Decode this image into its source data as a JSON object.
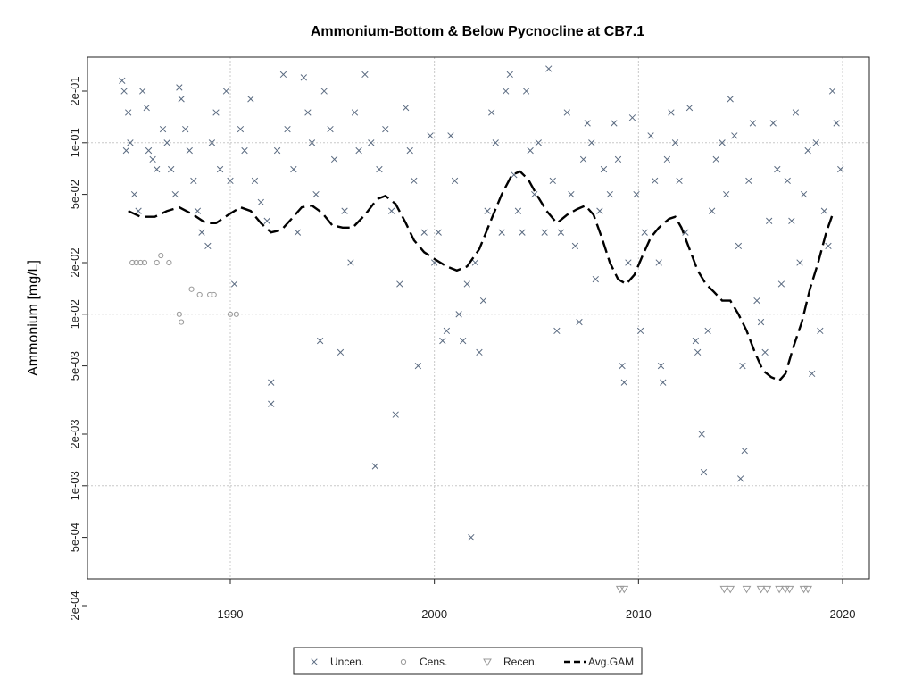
{
  "chart_data": {
    "type": "scatter",
    "title": "Ammonium-Bottom & Below Pycnocline at CB7.1",
    "xlabel": "",
    "ylabel": "Ammonium [mg/L]",
    "y_scale": "log",
    "xlim": [
      1983.3,
      2021.2
    ],
    "ylim": [
      0.00018,
      0.35
    ],
    "x_ticks": [
      "1990",
      "2000",
      "2010",
      "2020"
    ],
    "y_ticks": [
      "2e-01",
      "1e-01",
      "5e-02",
      "2e-02",
      "1e-02",
      "5e-03",
      "2e-03",
      "1e-03",
      "5e-04",
      "2e-04"
    ],
    "grid": true,
    "legend_position": "bottom",
    "colors": {
      "points": "#5a6a80",
      "censored": "#999999",
      "gam": "#000000",
      "grid": "#c8c8c8"
    },
    "series": [
      {
        "name": "Uncen.",
        "marker": "x",
        "points": [
          [
            1984.7,
            0.23
          ],
          [
            1984.8,
            0.2
          ],
          [
            1985.0,
            0.15
          ],
          [
            1985.1,
            0.1
          ],
          [
            1984.9,
            0.09
          ],
          [
            1985.3,
            0.05
          ],
          [
            1985.5,
            0.04
          ],
          [
            1985.7,
            0.2
          ],
          [
            1985.9,
            0.16
          ],
          [
            1986.0,
            0.09
          ],
          [
            1986.2,
            0.08
          ],
          [
            1986.4,
            0.07
          ],
          [
            1986.7,
            0.12
          ],
          [
            1986.9,
            0.1
          ],
          [
            1987.1,
            0.07
          ],
          [
            1987.3,
            0.05
          ],
          [
            1987.5,
            0.21
          ],
          [
            1987.6,
            0.18
          ],
          [
            1987.8,
            0.12
          ],
          [
            1988.0,
            0.09
          ],
          [
            1988.2,
            0.06
          ],
          [
            1988.4,
            0.04
          ],
          [
            1988.6,
            0.03
          ],
          [
            1988.9,
            0.025
          ],
          [
            1989.1,
            0.1
          ],
          [
            1989.3,
            0.15
          ],
          [
            1989.5,
            0.07
          ],
          [
            1989.8,
            0.2
          ],
          [
            1990.0,
            0.06
          ],
          [
            1990.2,
            0.015
          ],
          [
            1990.5,
            0.12
          ],
          [
            1990.7,
            0.09
          ],
          [
            1991.0,
            0.18
          ],
          [
            1991.2,
            0.06
          ],
          [
            1991.5,
            0.045
          ],
          [
            1991.8,
            0.035
          ],
          [
            1992.0,
            0.004
          ],
          [
            1992.0,
            0.003
          ],
          [
            1992.3,
            0.09
          ],
          [
            1992.6,
            0.25
          ],
          [
            1992.8,
            0.12
          ],
          [
            1993.1,
            0.07
          ],
          [
            1993.3,
            0.03
          ],
          [
            1993.6,
            0.24
          ],
          [
            1993.8,
            0.15
          ],
          [
            1994.0,
            0.1
          ],
          [
            1994.2,
            0.05
          ],
          [
            1994.4,
            0.007
          ],
          [
            1994.6,
            0.2
          ],
          [
            1994.9,
            0.12
          ],
          [
            1995.1,
            0.08
          ],
          [
            1995.4,
            0.006
          ],
          [
            1995.6,
            0.04
          ],
          [
            1995.9,
            0.02
          ],
          [
            1996.1,
            0.15
          ],
          [
            1996.3,
            0.09
          ],
          [
            1996.6,
            0.25
          ],
          [
            1996.9,
            0.1
          ],
          [
            1997.1,
            0.0013
          ],
          [
            1997.3,
            0.07
          ],
          [
            1997.6,
            0.12
          ],
          [
            1997.9,
            0.04
          ],
          [
            1998.1,
            0.0026
          ],
          [
            1998.3,
            0.015
          ],
          [
            1998.6,
            0.16
          ],
          [
            1998.8,
            0.09
          ],
          [
            1999.0,
            0.06
          ],
          [
            1999.2,
            0.005
          ],
          [
            1999.5,
            0.03
          ],
          [
            1999.8,
            0.11
          ],
          [
            2000.0,
            0.02
          ],
          [
            2000.2,
            0.03
          ],
          [
            2000.4,
            0.007
          ],
          [
            2000.6,
            0.008
          ],
          [
            2000.8,
            0.11
          ],
          [
            2001.0,
            0.06
          ],
          [
            2001.2,
            0.01
          ],
          [
            2001.4,
            0.007
          ],
          [
            2001.6,
            0.015
          ],
          [
            2001.8,
            0.0005
          ],
          [
            2002.0,
            0.02
          ],
          [
            2002.2,
            0.006
          ],
          [
            2002.4,
            0.012
          ],
          [
            2002.6,
            0.04
          ],
          [
            2002.8,
            0.15
          ],
          [
            2003.0,
            0.1
          ],
          [
            2003.3,
            0.03
          ],
          [
            2003.5,
            0.2
          ],
          [
            2003.7,
            0.25
          ],
          [
            2003.9,
            0.065
          ],
          [
            2004.1,
            0.04
          ],
          [
            2004.3,
            0.03
          ],
          [
            2004.5,
            0.2
          ],
          [
            2004.7,
            0.09
          ],
          [
            2004.9,
            0.05
          ],
          [
            2005.1,
            0.1
          ],
          [
            2005.4,
            0.03
          ],
          [
            2005.6,
            0.27
          ],
          [
            2005.8,
            0.06
          ],
          [
            2006.0,
            0.008
          ],
          [
            2006.2,
            0.03
          ],
          [
            2006.5,
            0.15
          ],
          [
            2006.7,
            0.05
          ],
          [
            2006.9,
            0.025
          ],
          [
            2007.1,
            0.009
          ],
          [
            2007.3,
            0.08
          ],
          [
            2007.5,
            0.13
          ],
          [
            2007.7,
            0.1
          ],
          [
            2007.9,
            0.016
          ],
          [
            2008.1,
            0.04
          ],
          [
            2008.3,
            0.07
          ],
          [
            2008.6,
            0.05
          ],
          [
            2008.8,
            0.13
          ],
          [
            2009.0,
            0.08
          ],
          [
            2009.2,
            0.005
          ],
          [
            2009.3,
            0.004
          ],
          [
            2009.5,
            0.02
          ],
          [
            2009.7,
            0.14
          ],
          [
            2009.9,
            0.05
          ],
          [
            2010.1,
            0.008
          ],
          [
            2010.3,
            0.03
          ],
          [
            2010.6,
            0.11
          ],
          [
            2010.8,
            0.06
          ],
          [
            2011.0,
            0.02
          ],
          [
            2011.1,
            0.005
          ],
          [
            2011.2,
            0.004
          ],
          [
            2011.4,
            0.08
          ],
          [
            2011.6,
            0.15
          ],
          [
            2011.8,
            0.1
          ],
          [
            2012.0,
            0.06
          ],
          [
            2012.3,
            0.03
          ],
          [
            2012.5,
            0.16
          ],
          [
            2012.8,
            0.007
          ],
          [
            2012.9,
            0.006
          ],
          [
            2013.1,
            0.002
          ],
          [
            2013.2,
            0.0012
          ],
          [
            2013.4,
            0.008
          ],
          [
            2013.6,
            0.04
          ],
          [
            2013.8,
            0.08
          ],
          [
            2014.1,
            0.1
          ],
          [
            2014.3,
            0.05
          ],
          [
            2014.5,
            0.18
          ],
          [
            2014.7,
            0.11
          ],
          [
            2014.9,
            0.025
          ],
          [
            2015.1,
            0.005
          ],
          [
            2015.2,
            0.0016
          ],
          [
            2015.4,
            0.06
          ],
          [
            2015.6,
            0.13
          ],
          [
            2015.8,
            0.012
          ],
          [
            2016.0,
            0.009
          ],
          [
            2016.2,
            0.006
          ],
          [
            2016.4,
            0.035
          ],
          [
            2016.6,
            0.13
          ],
          [
            2016.8,
            0.07
          ],
          [
            2017.0,
            0.015
          ],
          [
            2017.3,
            0.06
          ],
          [
            2017.5,
            0.035
          ],
          [
            2017.7,
            0.15
          ],
          [
            2017.9,
            0.02
          ],
          [
            2018.1,
            0.05
          ],
          [
            2018.3,
            0.09
          ],
          [
            2018.5,
            0.0045
          ],
          [
            2018.7,
            0.1
          ],
          [
            2018.9,
            0.008
          ],
          [
            2019.1,
            0.04
          ],
          [
            2019.3,
            0.025
          ],
          [
            2019.5,
            0.2
          ],
          [
            2019.7,
            0.13
          ],
          [
            2019.9,
            0.07
          ],
          [
            2015.0,
            0.0011
          ]
        ]
      },
      {
        "name": "Cens.",
        "marker": "o",
        "points": [
          [
            1985.2,
            0.02
          ],
          [
            1985.4,
            0.02
          ],
          [
            1985.6,
            0.02
          ],
          [
            1985.8,
            0.02
          ],
          [
            1986.4,
            0.02
          ],
          [
            1986.6,
            0.022
          ],
          [
            1987.0,
            0.02
          ],
          [
            1987.5,
            0.01
          ],
          [
            1987.6,
            0.009
          ],
          [
            1988.1,
            0.014
          ],
          [
            1988.5,
            0.013
          ],
          [
            1989.0,
            0.013
          ],
          [
            1989.2,
            0.013
          ],
          [
            1990.0,
            0.01
          ],
          [
            1990.3,
            0.01
          ]
        ]
      },
      {
        "name": "Recen.",
        "marker": "triangle-down",
        "points": [
          [
            2009.1,
            0.00025
          ],
          [
            2009.3,
            0.00025
          ],
          [
            2014.2,
            0.00025
          ],
          [
            2014.5,
            0.00025
          ],
          [
            2015.3,
            0.00025
          ],
          [
            2016.0,
            0.00025
          ],
          [
            2016.3,
            0.00025
          ],
          [
            2016.9,
            0.00025
          ],
          [
            2017.2,
            0.00025
          ],
          [
            2017.4,
            0.00025
          ],
          [
            2018.1,
            0.00025
          ],
          [
            2018.3,
            0.00025
          ]
        ]
      },
      {
        "name": "Avg.GAM",
        "type": "line",
        "points": [
          [
            1985.0,
            0.04
          ],
          [
            1985.6,
            0.037
          ],
          [
            1986.3,
            0.037
          ],
          [
            1986.9,
            0.04
          ],
          [
            1987.5,
            0.042
          ],
          [
            1988.2,
            0.038
          ],
          [
            1988.8,
            0.034
          ],
          [
            1989.3,
            0.034
          ],
          [
            1989.9,
            0.038
          ],
          [
            1990.5,
            0.042
          ],
          [
            1991.0,
            0.04
          ],
          [
            1991.5,
            0.034
          ],
          [
            1992.0,
            0.03
          ],
          [
            1992.5,
            0.031
          ],
          [
            1993.0,
            0.036
          ],
          [
            1993.5,
            0.042
          ],
          [
            1994.0,
            0.043
          ],
          [
            1994.5,
            0.039
          ],
          [
            1995.0,
            0.033
          ],
          [
            1995.5,
            0.032
          ],
          [
            1996.0,
            0.032
          ],
          [
            1996.6,
            0.038
          ],
          [
            1997.2,
            0.047
          ],
          [
            1997.6,
            0.049
          ],
          [
            1998.1,
            0.044
          ],
          [
            1998.6,
            0.034
          ],
          [
            1999.0,
            0.027
          ],
          [
            1999.5,
            0.023
          ],
          [
            2000.0,
            0.021
          ],
          [
            2000.6,
            0.019
          ],
          [
            2001.1,
            0.018
          ],
          [
            2001.6,
            0.019
          ],
          [
            2002.2,
            0.024
          ],
          [
            2002.8,
            0.036
          ],
          [
            2003.3,
            0.05
          ],
          [
            2003.8,
            0.065
          ],
          [
            2004.2,
            0.068
          ],
          [
            2004.6,
            0.061
          ],
          [
            2005.0,
            0.05
          ],
          [
            2005.5,
            0.04
          ],
          [
            2006.0,
            0.034
          ],
          [
            2006.5,
            0.038
          ],
          [
            2007.0,
            0.041
          ],
          [
            2007.4,
            0.043
          ],
          [
            2007.8,
            0.038
          ],
          [
            2008.2,
            0.028
          ],
          [
            2008.6,
            0.02
          ],
          [
            2009.0,
            0.016
          ],
          [
            2009.4,
            0.015
          ],
          [
            2009.8,
            0.017
          ],
          [
            2010.2,
            0.022
          ],
          [
            2010.6,
            0.028
          ],
          [
            2011.0,
            0.032
          ],
          [
            2011.5,
            0.036
          ],
          [
            2011.8,
            0.037
          ],
          [
            2012.1,
            0.032
          ],
          [
            2012.5,
            0.024
          ],
          [
            2012.9,
            0.018
          ],
          [
            2013.3,
            0.015
          ],
          [
            2013.7,
            0.0135
          ],
          [
            2014.1,
            0.012
          ],
          [
            2014.5,
            0.012
          ],
          [
            2014.9,
            0.01
          ],
          [
            2015.3,
            0.008
          ],
          [
            2015.7,
            0.006
          ],
          [
            2016.1,
            0.0047
          ],
          [
            2016.5,
            0.0043
          ],
          [
            2016.9,
            0.0041
          ],
          [
            2017.2,
            0.0045
          ],
          [
            2017.6,
            0.0065
          ],
          [
            2018.0,
            0.009
          ],
          [
            2018.4,
            0.014
          ],
          [
            2018.8,
            0.02
          ],
          [
            2019.2,
            0.03
          ],
          [
            2019.5,
            0.038
          ]
        ]
      }
    ]
  }
}
